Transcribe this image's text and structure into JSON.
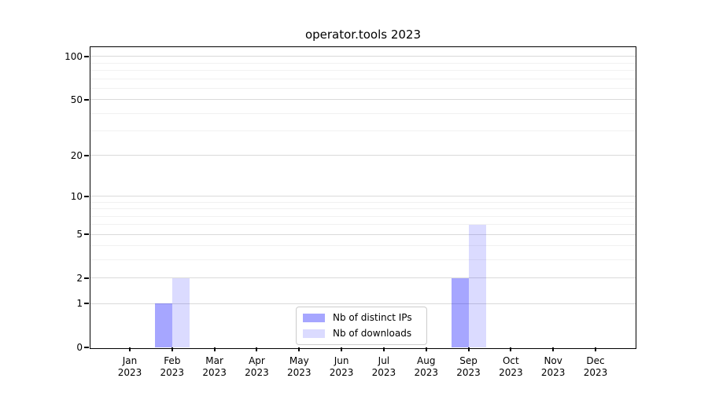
{
  "figure": {
    "background": "#ffffff"
  },
  "chart_data": {
    "type": "bar",
    "title": "operator.tools 2023",
    "categories": [
      "Jan 2023",
      "Feb 2023",
      "Mar 2023",
      "Apr 2023",
      "May 2023",
      "Jun 2023",
      "Jul 2023",
      "Aug 2023",
      "Sep 2023",
      "Oct 2023",
      "Nov 2023",
      "Dec 2023"
    ],
    "series": [
      {
        "name": "Nb of distinct IPs",
        "color": "rgba(0,0,255,0.35)",
        "color_hex_on_white": "#a6a6ff",
        "values": [
          0,
          1,
          0,
          0,
          0,
          0,
          0,
          0,
          2,
          0,
          0,
          0
        ]
      },
      {
        "name": "Nb of downloads",
        "color": "rgba(0,0,255,0.14)",
        "color_hex_on_white": "#dbdbff",
        "values": [
          0,
          2,
          0,
          0,
          0,
          0,
          0,
          0,
          6,
          0,
          0,
          0
        ]
      }
    ],
    "xlabel": "",
    "ylabel": "",
    "yscale": "log1p",
    "ylim": [
      0,
      116
    ],
    "y_major_ticks": [
      0,
      1,
      2,
      5,
      10,
      20,
      50,
      100
    ],
    "y_minor_ticks": [
      3,
      4,
      6,
      7,
      8,
      9,
      30,
      40,
      60,
      70,
      80,
      90
    ],
    "grid": true,
    "legend_position": "lower center"
  },
  "colors": {
    "grid_major": "#dadada",
    "grid_minor": "#f1f1f1",
    "axis": "#000000",
    "legend_border": "#cccccc",
    "background": "#ffffff"
  }
}
